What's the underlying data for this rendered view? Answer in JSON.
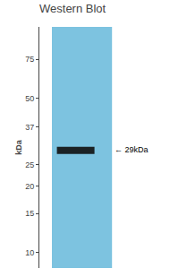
{
  "chart_data": {
    "type": "gel",
    "title": "Western Blot",
    "ylabel": "kDa",
    "log": "y",
    "ylim": [
      8.5,
      105
    ],
    "yticks": [
      75,
      50,
      37,
      25,
      20,
      15,
      10
    ],
    "values": [
      29
    ],
    "value_labels": [
      "← 29kDa"
    ],
    "data_labels": true,
    "color": "#111111",
    "grid": false,
    "tick_labels": "y"
  }
}
